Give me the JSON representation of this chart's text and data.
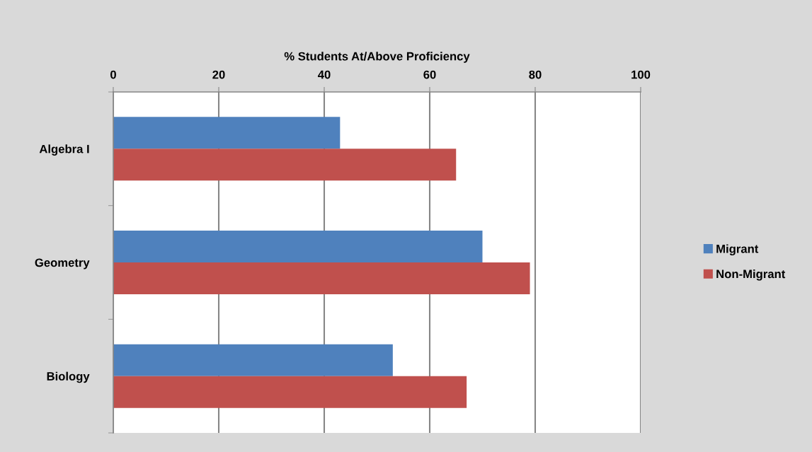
{
  "chart_data": {
    "type": "bar",
    "orientation": "horizontal",
    "xlabel": "% Students At/Above Proficiency",
    "categories": [
      "Algebra I",
      "Geometry",
      "Biology"
    ],
    "series": [
      {
        "name": "Migrant",
        "color": "#4f81bd",
        "values": [
          43,
          70,
          53
        ]
      },
      {
        "name": "Non-Migrant",
        "color": "#c0504d",
        "values": [
          65,
          79,
          67
        ]
      }
    ],
    "xlim": [
      0,
      100
    ],
    "xticks": [
      0,
      20,
      40,
      60,
      80,
      100
    ],
    "grid": "x",
    "legend": "right"
  }
}
